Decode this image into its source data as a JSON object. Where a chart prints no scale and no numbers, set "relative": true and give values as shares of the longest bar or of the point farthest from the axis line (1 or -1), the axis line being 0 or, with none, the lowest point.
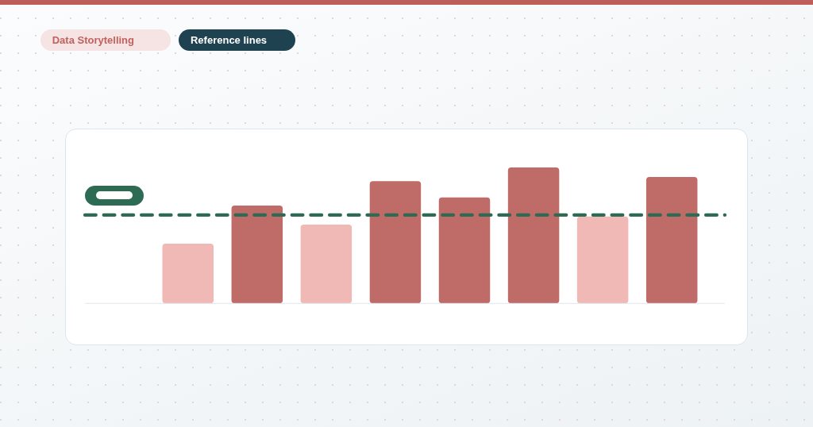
{
  "chart_data": {
    "type": "bar",
    "categories": [
      null,
      null,
      null,
      null,
      null,
      null,
      null,
      null
    ],
    "values": [
      0.44,
      0.72,
      0.58,
      0.9,
      0.78,
      1,
      0.64,
      0.93
    ],
    "colors": [
      "#f0b9b6",
      "#bf6b68",
      "#f0b9b6",
      "#bf6b68",
      "#bf6b68",
      "#bf6b68",
      "#f0b9b6",
      "#bf6b68"
    ],
    "relative": true,
    "ref_lines": [
      {
        "axis": "y",
        "value": 0.65,
        "color": "#2e6b55",
        "line_style": "dashed"
      }
    ],
    "annotations": [
      "Data Storytelling",
      "Reference lines"
    ]
  }
}
